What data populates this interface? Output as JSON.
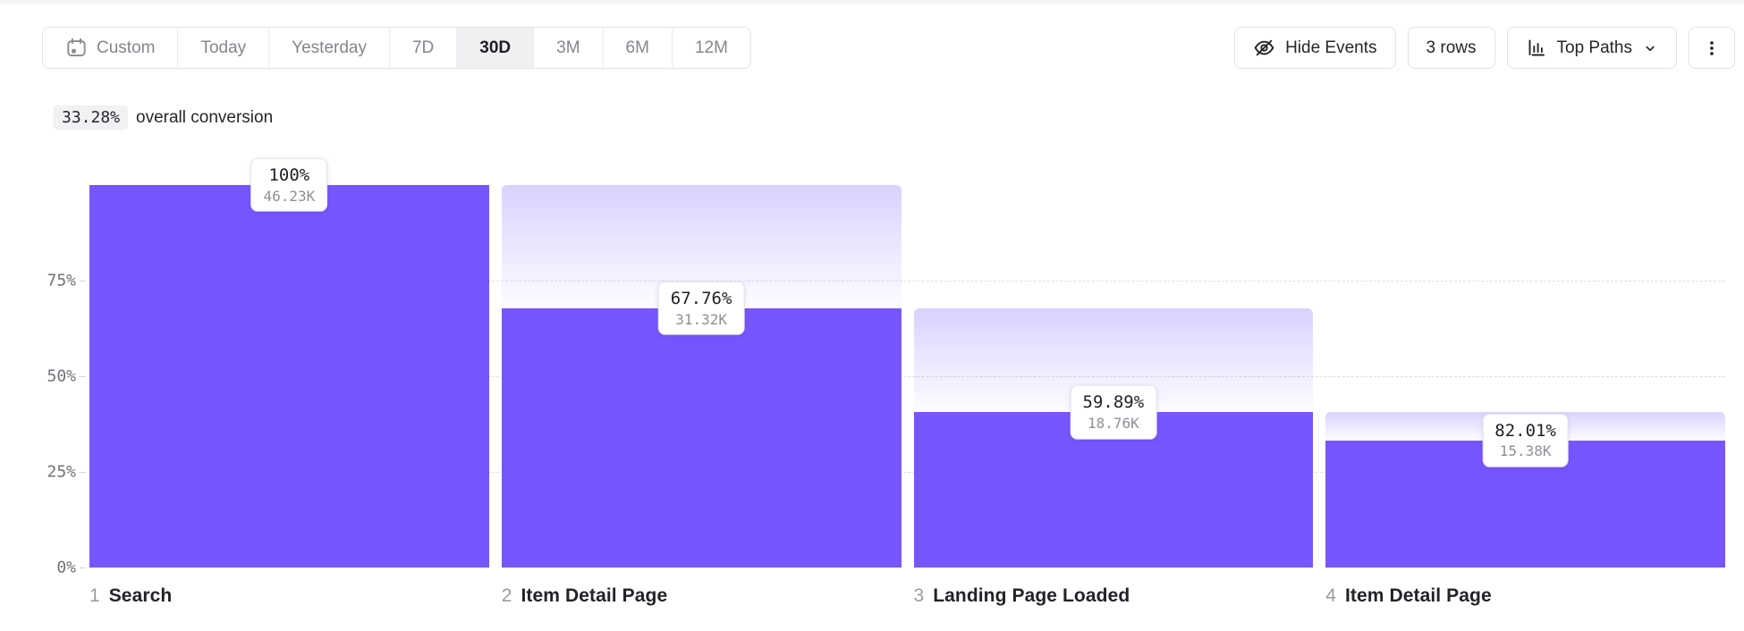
{
  "toolbar": {
    "date_ranges": [
      {
        "label": "Custom",
        "icon": "calendar-icon",
        "selected": false
      },
      {
        "label": "Today",
        "selected": false
      },
      {
        "label": "Yesterday",
        "selected": false
      },
      {
        "label": "7D",
        "selected": false
      },
      {
        "label": "30D",
        "selected": true
      },
      {
        "label": "3M",
        "selected": false
      },
      {
        "label": "6M",
        "selected": false
      },
      {
        "label": "12M",
        "selected": false
      }
    ],
    "actions": [
      {
        "name": "hide-events-button",
        "label": "Hide Events",
        "icon": "eye-off-icon"
      },
      {
        "name": "rows-button",
        "label": "3 rows"
      },
      {
        "name": "top-paths-button",
        "label": "Top Paths",
        "icon": "bar-chart-icon",
        "chevron": true
      },
      {
        "name": "more-menu-button",
        "label": "",
        "icon": "kebab-icon"
      }
    ]
  },
  "summary": {
    "value": "33.28%",
    "text": "overall conversion"
  },
  "chart_data": {
    "type": "bar",
    "subtype": "funnel",
    "title": "",
    "xlabel": "",
    "ylabel": "",
    "ylim": [
      0,
      100
    ],
    "y_tick_labels": [
      "0%",
      "25%",
      "50%",
      "75%"
    ],
    "y_tick_values": [
      0,
      25,
      50,
      75
    ],
    "grid": "dashed horizontal lines at 25%, 50%, 75%",
    "legend": "none",
    "steps": [
      {
        "index": "1",
        "label": "Search",
        "conversion_label": "100%",
        "conversion_pct": 100,
        "count_label": "46.23K",
        "count": 46230
      },
      {
        "index": "2",
        "label": "Item Detail Page",
        "conversion_label": "67.76%",
        "conversion_pct": 67.76,
        "count_label": "31.32K",
        "count": 31320
      },
      {
        "index": "3",
        "label": "Landing Page Loaded",
        "conversion_label": "59.89%",
        "conversion_pct": 59.89,
        "count_label": "18.76K",
        "count": 18760
      },
      {
        "index": "4",
        "label": "Item Detail Page",
        "conversion_label": "82.01%",
        "conversion_pct": 82.01,
        "count_label": "15.38K",
        "count": 15380
      }
    ],
    "colors": {
      "bar": "#7856ff",
      "dropoff_gradient_top": "#dcd3fa",
      "grid": "#dcdce2",
      "tick_text": "#71717a"
    }
  }
}
